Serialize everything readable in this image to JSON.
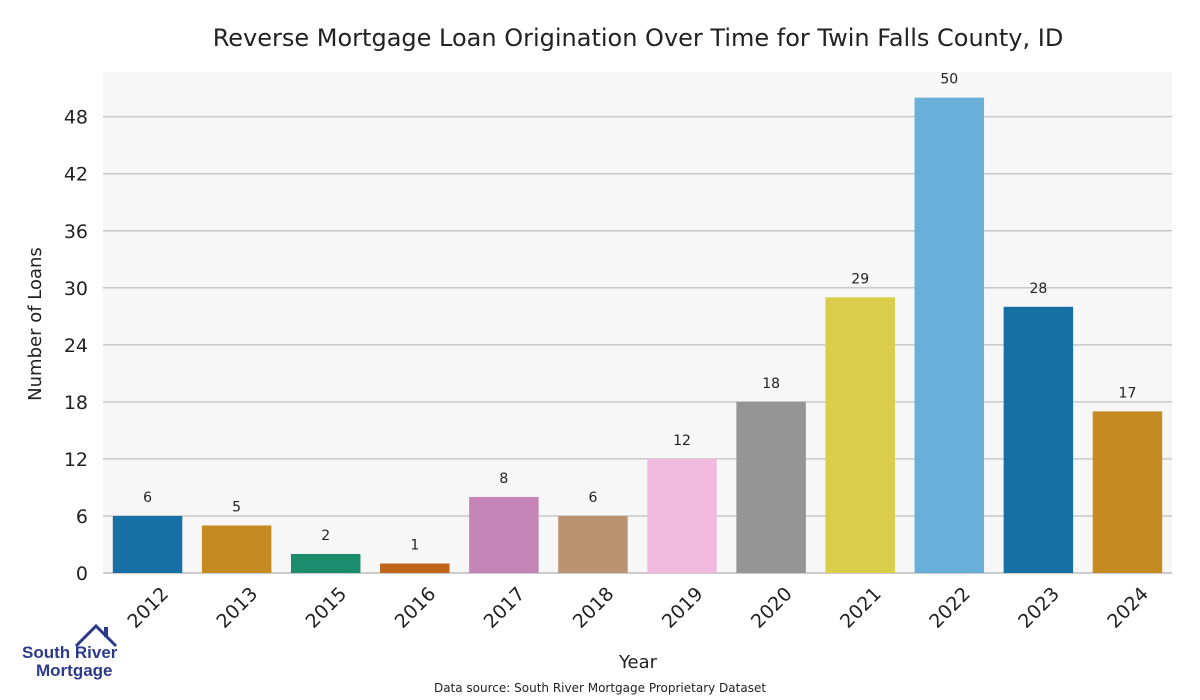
{
  "chart_data": {
    "type": "bar",
    "title": "Reverse Mortgage Loan Origination Over Time for Twin Falls County, ID",
    "xlabel": "Year",
    "ylabel": "Number of Loans",
    "categories": [
      "2012",
      "2013",
      "2015",
      "2016",
      "2017",
      "2018",
      "2019",
      "2020",
      "2021",
      "2022",
      "2023",
      "2024"
    ],
    "values": [
      6,
      5,
      2,
      1,
      8,
      6,
      12,
      18,
      29,
      50,
      28,
      17
    ],
    "colors": [
      "#1670a6",
      "#c68a22",
      "#1b8c6c",
      "#c1651b",
      "#c584b8",
      "#bc9370",
      "#f1b9e0",
      "#959595",
      "#d9cd4a",
      "#68b0d9",
      "#1670a6",
      "#c68a22"
    ],
    "yticks": [
      0,
      6,
      12,
      18,
      24,
      30,
      36,
      42,
      48
    ],
    "ylim": [
      0,
      50
    ],
    "grid": true,
    "background": "#f7f7f7"
  },
  "logo": {
    "line1": "South River",
    "line2": "Mortgage"
  },
  "footer": {
    "source": "Data source: South River Mortgage Proprietary Dataset"
  }
}
